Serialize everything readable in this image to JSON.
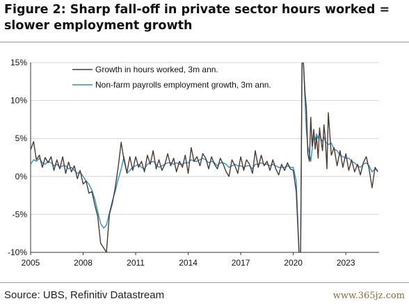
{
  "title_lines": [
    "Figure 2: Sharp fall-off in private sector hours worked =",
    "slower employment growth"
  ],
  "source": "Source: UBS, Refinitiv Datastream",
  "watermark": "www.365jz.com",
  "colors": {
    "hours": "#4a3a30",
    "payrolls": "#2f8fce",
    "grid": "#d6d6d6",
    "axis": "#333333"
  },
  "chart_data": {
    "type": "line",
    "title": "Figure 2: Sharp fall-off in private sector hours worked = slower employment growth",
    "xlabel": "",
    "ylabel": "",
    "xlim": [
      2005,
      2024.9
    ],
    "ylim": [
      -10,
      15
    ],
    "x_ticks": [
      2005,
      2008,
      2011,
      2014,
      2017,
      2020,
      2023
    ],
    "y_ticks": [
      -10,
      -5,
      0,
      5,
      10,
      15
    ],
    "y_tick_labels": [
      "-10%",
      "-5%",
      "0%",
      "5%",
      "10%",
      "15%"
    ],
    "grid": "horizontal",
    "legend_position": "top-left",
    "series": [
      {
        "name": "Growth in hours worked, 3m ann.",
        "color": "#4a3a30",
        "points": [
          [
            2005.0,
            3.5
          ],
          [
            2005.17,
            4.6
          ],
          [
            2005.33,
            2.2
          ],
          [
            2005.5,
            2.8
          ],
          [
            2005.67,
            1.2
          ],
          [
            2005.83,
            2.5
          ],
          [
            2006.0,
            1.8
          ],
          [
            2006.17,
            2.6
          ],
          [
            2006.33,
            0.8
          ],
          [
            2006.5,
            2.2
          ],
          [
            2006.67,
            1.0
          ],
          [
            2006.83,
            2.6
          ],
          [
            2007.0,
            0.4
          ],
          [
            2007.17,
            1.9
          ],
          [
            2007.33,
            0.6
          ],
          [
            2007.5,
            1.4
          ],
          [
            2007.67,
            -0.3
          ],
          [
            2007.83,
            0.8
          ],
          [
            2008.0,
            -1.0
          ],
          [
            2008.17,
            -0.6
          ],
          [
            2008.33,
            -2.2
          ],
          [
            2008.5,
            -2.0
          ],
          [
            2008.67,
            -3.8
          ],
          [
            2008.83,
            -5.2
          ],
          [
            2009.0,
            -8.8
          ],
          [
            2009.17,
            -9.4
          ],
          [
            2009.33,
            -10.0
          ],
          [
            2009.5,
            -5.0
          ],
          [
            2009.67,
            -3.5
          ],
          [
            2009.83,
            -1.5
          ],
          [
            2010.0,
            1.2
          ],
          [
            2010.17,
            4.5
          ],
          [
            2010.33,
            2.2
          ],
          [
            2010.5,
            0.5
          ],
          [
            2010.67,
            2.6
          ],
          [
            2010.83,
            0.8
          ],
          [
            2011.0,
            2.6
          ],
          [
            2011.17,
            1.2
          ],
          [
            2011.33,
            2.0
          ],
          [
            2011.5,
            0.6
          ],
          [
            2011.67,
            2.8
          ],
          [
            2011.83,
            1.6
          ],
          [
            2012.0,
            3.4
          ],
          [
            2012.17,
            1.0
          ],
          [
            2012.33,
            2.2
          ],
          [
            2012.5,
            0.8
          ],
          [
            2012.67,
            1.6
          ],
          [
            2012.83,
            3.0
          ],
          [
            2013.0,
            1.4
          ],
          [
            2013.17,
            2.4
          ],
          [
            2013.33,
            0.6
          ],
          [
            2013.5,
            2.0
          ],
          [
            2013.67,
            1.2
          ],
          [
            2013.83,
            2.8
          ],
          [
            2014.0,
            0.4
          ],
          [
            2014.17,
            3.8
          ],
          [
            2014.33,
            2.0
          ],
          [
            2014.5,
            2.6
          ],
          [
            2014.67,
            1.4
          ],
          [
            2014.83,
            3.0
          ],
          [
            2015.0,
            2.4
          ],
          [
            2015.17,
            1.0
          ],
          [
            2015.33,
            2.6
          ],
          [
            2015.5,
            1.6
          ],
          [
            2015.67,
            1.0
          ],
          [
            2015.83,
            2.4
          ],
          [
            2016.0,
            1.6
          ],
          [
            2016.17,
            0.6
          ],
          [
            2016.33,
            0.0
          ],
          [
            2016.5,
            2.2
          ],
          [
            2016.67,
            1.4
          ],
          [
            2016.83,
            0.4
          ],
          [
            2017.0,
            2.6
          ],
          [
            2017.17,
            0.8
          ],
          [
            2017.33,
            2.2
          ],
          [
            2017.5,
            1.6
          ],
          [
            2017.67,
            0.4
          ],
          [
            2017.83,
            3.4
          ],
          [
            2018.0,
            1.2
          ],
          [
            2018.17,
            2.8
          ],
          [
            2018.33,
            1.4
          ],
          [
            2018.5,
            2.0
          ],
          [
            2018.67,
            0.8
          ],
          [
            2018.83,
            2.2
          ],
          [
            2019.0,
            1.0
          ],
          [
            2019.17,
            0.2
          ],
          [
            2019.33,
            1.6
          ],
          [
            2019.5,
            0.8
          ],
          [
            2019.67,
            1.8
          ],
          [
            2019.83,
            1.0
          ],
          [
            2020.0,
            0.8
          ],
          [
            2020.17,
            -2.0
          ],
          [
            2020.33,
            -10.0
          ],
          [
            2020.42,
            -10.0
          ],
          [
            2020.5,
            15.0
          ],
          [
            2020.58,
            15.0
          ],
          [
            2020.67,
            11.0
          ],
          [
            2020.75,
            9.0
          ],
          [
            2020.83,
            3.0
          ],
          [
            2020.92,
            2.0
          ],
          [
            2021.0,
            7.8
          ],
          [
            2021.08,
            4.0
          ],
          [
            2021.17,
            6.2
          ],
          [
            2021.25,
            3.6
          ],
          [
            2021.33,
            5.2
          ],
          [
            2021.42,
            2.4
          ],
          [
            2021.5,
            6.4
          ],
          [
            2021.58,
            4.8
          ],
          [
            2021.67,
            3.4
          ],
          [
            2021.75,
            6.8
          ],
          [
            2021.83,
            5.0
          ],
          [
            2021.92,
            1.0
          ],
          [
            2022.0,
            8.4
          ],
          [
            2022.17,
            2.8
          ],
          [
            2022.33,
            3.8
          ],
          [
            2022.5,
            1.4
          ],
          [
            2022.67,
            3.4
          ],
          [
            2022.83,
            1.2
          ],
          [
            2023.0,
            3.0
          ],
          [
            2023.17,
            0.8
          ],
          [
            2023.33,
            2.2
          ],
          [
            2023.5,
            0.6
          ],
          [
            2023.67,
            1.6
          ],
          [
            2023.83,
            0.2
          ],
          [
            2024.0,
            1.8
          ],
          [
            2024.17,
            2.6
          ],
          [
            2024.33,
            1.0
          ],
          [
            2024.5,
            -1.5
          ],
          [
            2024.67,
            1.2
          ],
          [
            2024.83,
            0.6
          ]
        ]
      },
      {
        "name": "Non-farm payrolls employment growth, 3m ann.",
        "color": "#2f8fce",
        "points": [
          [
            2005.0,
            1.6
          ],
          [
            2005.17,
            2.2
          ],
          [
            2005.33,
            2.0
          ],
          [
            2005.5,
            2.4
          ],
          [
            2005.67,
            1.8
          ],
          [
            2005.83,
            1.6
          ],
          [
            2006.0,
            2.0
          ],
          [
            2006.17,
            1.8
          ],
          [
            2006.33,
            1.4
          ],
          [
            2006.5,
            1.6
          ],
          [
            2006.67,
            1.2
          ],
          [
            2006.83,
            1.4
          ],
          [
            2007.0,
            1.4
          ],
          [
            2007.17,
            1.0
          ],
          [
            2007.33,
            1.2
          ],
          [
            2007.5,
            0.8
          ],
          [
            2007.67,
            0.4
          ],
          [
            2007.83,
            0.6
          ],
          [
            2008.0,
            0.0
          ],
          [
            2008.17,
            -0.6
          ],
          [
            2008.33,
            -1.0
          ],
          [
            2008.5,
            -1.8
          ],
          [
            2008.67,
            -3.0
          ],
          [
            2008.83,
            -4.6
          ],
          [
            2009.0,
            -6.2
          ],
          [
            2009.17,
            -6.8
          ],
          [
            2009.33,
            -6.4
          ],
          [
            2009.5,
            -4.8
          ],
          [
            2009.67,
            -3.2
          ],
          [
            2009.83,
            -2.0
          ],
          [
            2010.0,
            -0.4
          ],
          [
            2010.17,
            1.0
          ],
          [
            2010.33,
            2.6
          ],
          [
            2010.5,
            0.4
          ],
          [
            2010.67,
            0.8
          ],
          [
            2010.83,
            1.2
          ],
          [
            2011.0,
            1.4
          ],
          [
            2011.17,
            1.6
          ],
          [
            2011.33,
            1.2
          ],
          [
            2011.5,
            1.0
          ],
          [
            2011.67,
            1.6
          ],
          [
            2011.83,
            1.8
          ],
          [
            2012.0,
            2.0
          ],
          [
            2012.17,
            1.6
          ],
          [
            2012.33,
            1.2
          ],
          [
            2012.5,
            1.4
          ],
          [
            2012.67,
            1.6
          ],
          [
            2012.83,
            1.8
          ],
          [
            2013.0,
            1.8
          ],
          [
            2013.17,
            1.6
          ],
          [
            2013.33,
            1.8
          ],
          [
            2013.5,
            1.6
          ],
          [
            2013.67,
            1.6
          ],
          [
            2013.83,
            1.8
          ],
          [
            2014.0,
            1.8
          ],
          [
            2014.17,
            2.2
          ],
          [
            2014.33,
            2.0
          ],
          [
            2014.5,
            2.0
          ],
          [
            2014.67,
            2.2
          ],
          [
            2014.83,
            2.4
          ],
          [
            2015.0,
            2.2
          ],
          [
            2015.17,
            1.8
          ],
          [
            2015.33,
            2.0
          ],
          [
            2015.5,
            1.8
          ],
          [
            2015.67,
            1.4
          ],
          [
            2015.83,
            1.8
          ],
          [
            2016.0,
            1.8
          ],
          [
            2016.17,
            1.6
          ],
          [
            2016.33,
            1.2
          ],
          [
            2016.5,
            1.4
          ],
          [
            2016.67,
            1.6
          ],
          [
            2016.83,
            1.4
          ],
          [
            2017.0,
            1.4
          ],
          [
            2017.17,
            1.2
          ],
          [
            2017.33,
            1.4
          ],
          [
            2017.5,
            1.4
          ],
          [
            2017.67,
            1.0
          ],
          [
            2017.83,
            1.6
          ],
          [
            2018.0,
            1.6
          ],
          [
            2018.17,
            1.8
          ],
          [
            2018.33,
            1.6
          ],
          [
            2018.5,
            1.6
          ],
          [
            2018.67,
            1.4
          ],
          [
            2018.83,
            1.6
          ],
          [
            2019.0,
            1.4
          ],
          [
            2019.17,
            1.2
          ],
          [
            2019.33,
            1.2
          ],
          [
            2019.5,
            1.2
          ],
          [
            2019.67,
            1.4
          ],
          [
            2019.83,
            1.2
          ],
          [
            2020.0,
            1.2
          ],
          [
            2020.17,
            -0.6
          ],
          [
            2020.33,
            -10.0
          ],
          [
            2020.42,
            -10.0
          ],
          [
            2020.5,
            15.0
          ],
          [
            2020.58,
            15.0
          ],
          [
            2020.67,
            10.0
          ],
          [
            2020.75,
            6.0
          ],
          [
            2020.83,
            4.0
          ],
          [
            2020.92,
            3.0
          ],
          [
            2021.0,
            2.0
          ],
          [
            2021.08,
            3.6
          ],
          [
            2021.17,
            5.4
          ],
          [
            2021.25,
            4.8
          ],
          [
            2021.33,
            5.6
          ],
          [
            2021.42,
            5.0
          ],
          [
            2021.5,
            5.8
          ],
          [
            2021.58,
            5.0
          ],
          [
            2021.67,
            4.6
          ],
          [
            2021.75,
            5.2
          ],
          [
            2021.83,
            4.6
          ],
          [
            2021.92,
            4.4
          ],
          [
            2022.0,
            4.2
          ],
          [
            2022.17,
            4.4
          ],
          [
            2022.33,
            3.6
          ],
          [
            2022.5,
            3.4
          ],
          [
            2022.67,
            2.8
          ],
          [
            2022.83,
            2.6
          ],
          [
            2023.0,
            2.4
          ],
          [
            2023.17,
            2.4
          ],
          [
            2023.33,
            2.0
          ],
          [
            2023.5,
            1.8
          ],
          [
            2023.67,
            1.4
          ],
          [
            2023.83,
            1.2
          ],
          [
            2024.0,
            1.6
          ],
          [
            2024.17,
            1.8
          ],
          [
            2024.33,
            1.4
          ],
          [
            2024.5,
            0.6
          ],
          [
            2024.67,
            1.0
          ],
          [
            2024.83,
            0.8
          ]
        ]
      }
    ]
  }
}
